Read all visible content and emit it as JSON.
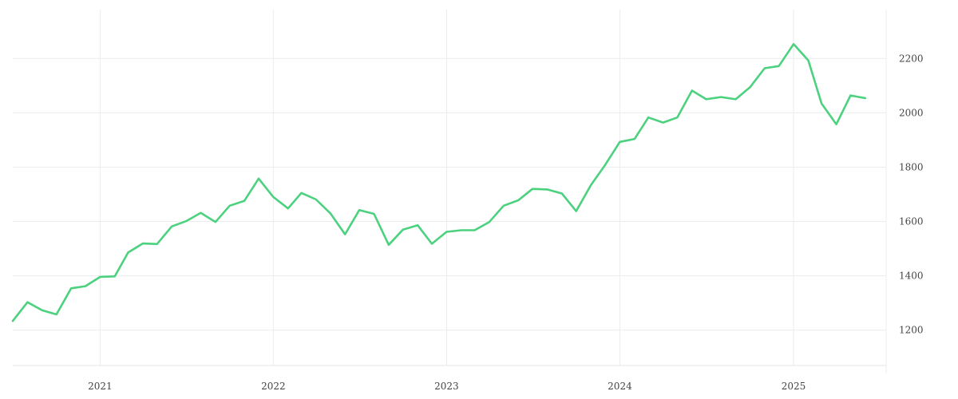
{
  "chart_data": {
    "type": "line",
    "title": "",
    "xlabel": "",
    "ylabel": "",
    "x_axis": "dates",
    "xlim": [
      "2020-07-01",
      "2025-07-15"
    ],
    "ylim": [
      1070,
      2380
    ],
    "y_ticks": [
      1200,
      1400,
      1600,
      1800,
      2000,
      2200
    ],
    "x_ticks": [
      {
        "date": "2021-01-01",
        "label": "2021"
      },
      {
        "date": "2022-01-01",
        "label": "2022"
      },
      {
        "date": "2023-01-01",
        "label": "2023"
      },
      {
        "date": "2024-01-01",
        "label": "2024"
      },
      {
        "date": "2025-01-01",
        "label": "2025"
      }
    ],
    "y_axis_side": "right",
    "grid": true,
    "legend": "none",
    "color": "#4cd17f",
    "series": [
      {
        "x": [
          "2020-07-01",
          "2020-08-01",
          "2020-09-01",
          "2020-10-01",
          "2020-11-01",
          "2020-12-01",
          "2021-01-01",
          "2021-02-01",
          "2021-03-01",
          "2021-04-01",
          "2021-05-01",
          "2021-06-01",
          "2021-07-01",
          "2021-08-01",
          "2021-09-01",
          "2021-10-01",
          "2021-11-01",
          "2021-12-01",
          "2022-01-01",
          "2022-02-01",
          "2022-03-01",
          "2022-04-01",
          "2022-05-01",
          "2022-06-01",
          "2022-07-01",
          "2022-08-01",
          "2022-09-01",
          "2022-10-01",
          "2022-11-01",
          "2022-12-01",
          "2023-01-01",
          "2023-02-01",
          "2023-03-01",
          "2023-04-01",
          "2023-05-01",
          "2023-06-01",
          "2023-07-01",
          "2023-08-01",
          "2023-09-01",
          "2023-10-01",
          "2023-11-01",
          "2023-12-01",
          "2024-01-01",
          "2024-02-01",
          "2024-03-01",
          "2024-04-01",
          "2024-05-01",
          "2024-06-01",
          "2024-07-01",
          "2024-08-01",
          "2024-09-01",
          "2024-10-01",
          "2024-11-01",
          "2024-12-01",
          "2025-01-01",
          "2025-02-01",
          "2025-03-01",
          "2025-04-01",
          "2025-05-01",
          "2025-06-01"
        ],
        "y": [
          1234,
          1303,
          1273,
          1258,
          1354,
          1362,
          1396,
          1398,
          1486,
          1519,
          1517,
          1582,
          1601,
          1632,
          1598,
          1658,
          1676,
          1758,
          1690,
          1648,
          1705,
          1681,
          1630,
          1553,
          1642,
          1628,
          1514,
          1570,
          1586,
          1518,
          1562,
          1568,
          1568,
          1598,
          1658,
          1678,
          1720,
          1718,
          1703,
          1638,
          1734,
          1808,
          1893,
          1904,
          1983,
          1964,
          1983,
          2082,
          2050,
          2058,
          2050,
          2094,
          2164,
          2172,
          2253,
          2193,
          2034,
          1958,
          2064,
          2054
        ]
      }
    ]
  }
}
